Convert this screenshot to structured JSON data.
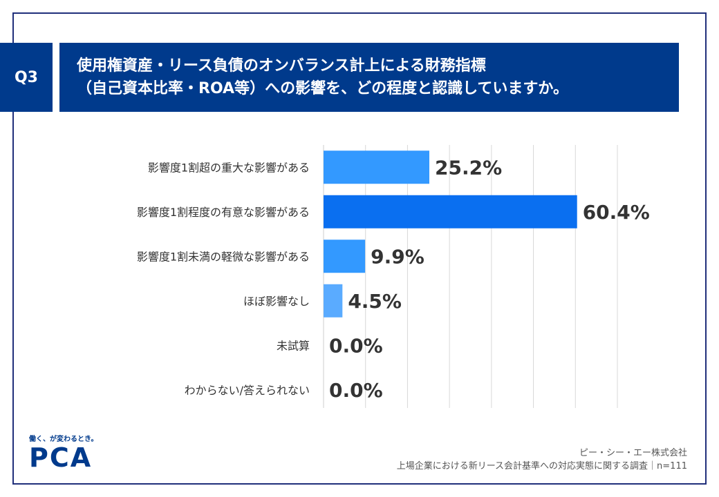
{
  "question": {
    "number": "Q3",
    "title_line1": "使用権資産・リース負債のオンバランス計上による財務指標",
    "title_line2": "（自己資本比率・ROA等）への影響を、どの程度と認識していますか。"
  },
  "chart_data": {
    "type": "bar",
    "orientation": "horizontal",
    "categories": [
      "影響度1割超の重大な影響がある",
      "影響度1割程度の有意な影響がある",
      "影響度1割未満の軽微な影響がある",
      "ほぼ影響なし",
      "未試算",
      "わからない/答えられない"
    ],
    "values": [
      25.2,
      60.4,
      9.9,
      4.5,
      0.0,
      0.0
    ],
    "value_labels": [
      "25.2%",
      "60.4%",
      "9.9%",
      "4.5%",
      "0.0%",
      "0.0%"
    ],
    "bar_colors": [
      "#3399ff",
      "#0a6ff0",
      "#3399ff",
      "#5aabff",
      "#5aabff",
      "#5aabff"
    ],
    "xlim": [
      0,
      70
    ],
    "grid": true
  },
  "branding": {
    "tagline": "働く、が変わるとき。",
    "logo": "PCA"
  },
  "source": {
    "company": "ピー・シー・エー株式会社",
    "survey": "上場企業における新リース会計基準への対応実態に関する調査｜n=111"
  }
}
